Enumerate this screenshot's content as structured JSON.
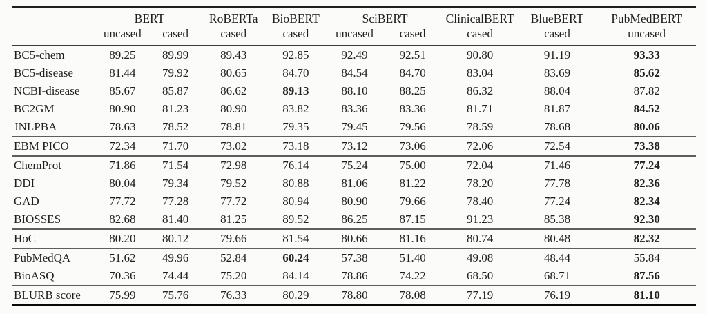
{
  "colors": {
    "background": "#fbfbf9",
    "text": "#1f1f1f",
    "rule_top": "#1e1e1e",
    "rule_bottom": "#0a0a0a",
    "rule_header": "#3c3c3c",
    "rule_group": "#5e5e5e"
  },
  "chart_data": {
    "type": "table",
    "header": {
      "groups": [
        {
          "label": "BERT",
          "span": 2
        },
        {
          "label": "RoBERTa",
          "span": 1
        },
        {
          "label": "BioBERT",
          "span": 1
        },
        {
          "label": "SciBERT",
          "span": 2
        },
        {
          "label": "ClinicalBERT",
          "span": 1
        },
        {
          "label": "BlueBERT",
          "span": 1
        },
        {
          "label": "PubMedBERT",
          "span": 1
        }
      ],
      "variants": [
        "uncased",
        "cased",
        "cased",
        "cased",
        "uncased",
        "cased",
        "cased",
        "cased",
        "uncased"
      ]
    },
    "row_groups": [
      {
        "rows": [
          {
            "task": "BC5-chem",
            "values": [
              "89.25",
              "89.99",
              "89.43",
              "92.85",
              "92.49",
              "92.51",
              "90.80",
              "91.19",
              "93.33"
            ],
            "best": 8
          },
          {
            "task": "BC5-disease",
            "values": [
              "81.44",
              "79.92",
              "80.65",
              "84.70",
              "84.54",
              "84.70",
              "83.04",
              "83.69",
              "85.62"
            ],
            "best": 8
          },
          {
            "task": "NCBI-disease",
            "values": [
              "85.67",
              "85.87",
              "86.62",
              "89.13",
              "88.10",
              "88.25",
              "86.32",
              "88.04",
              "87.82"
            ],
            "best": 3
          },
          {
            "task": "BC2GM",
            "values": [
              "80.90",
              "81.23",
              "80.90",
              "83.82",
              "83.36",
              "83.36",
              "81.71",
              "81.87",
              "84.52"
            ],
            "best": 8
          },
          {
            "task": "JNLPBA",
            "values": [
              "78.63",
              "78.52",
              "78.81",
              "79.35",
              "79.45",
              "79.56",
              "78.59",
              "78.68",
              "80.06"
            ],
            "best": 8
          }
        ]
      },
      {
        "rows": [
          {
            "task": "EBM PICO",
            "values": [
              "72.34",
              "71.70",
              "73.02",
              "73.18",
              "73.12",
              "73.06",
              "72.06",
              "72.54",
              "73.38"
            ],
            "best": 8
          }
        ]
      },
      {
        "rows": [
          {
            "task": "ChemProt",
            "values": [
              "71.86",
              "71.54",
              "72.98",
              "76.14",
              "75.24",
              "75.00",
              "72.04",
              "71.46",
              "77.24"
            ],
            "best": 8
          },
          {
            "task": "DDI",
            "values": [
              "80.04",
              "79.34",
              "79.52",
              "80.88",
              "81.06",
              "81.22",
              "78.20",
              "77.78",
              "82.36"
            ],
            "best": 8
          },
          {
            "task": "GAD",
            "values": [
              "77.72",
              "77.28",
              "77.72",
              "80.94",
              "80.90",
              "79.66",
              "78.40",
              "77.24",
              "82.34"
            ],
            "best": 8
          },
          {
            "task": "BIOSSES",
            "values": [
              "82.68",
              "81.40",
              "81.25",
              "89.52",
              "86.25",
              "87.15",
              "91.23",
              "85.38",
              "92.30"
            ],
            "best": 8
          }
        ]
      },
      {
        "rows": [
          {
            "task": "HoC",
            "values": [
              "80.20",
              "80.12",
              "79.66",
              "81.54",
              "80.66",
              "81.16",
              "80.74",
              "80.48",
              "82.32"
            ],
            "best": 8
          }
        ]
      },
      {
        "rows": [
          {
            "task": "PubMedQA",
            "values": [
              "51.62",
              "49.96",
              "52.84",
              "60.24",
              "57.38",
              "51.40",
              "49.08",
              "48.44",
              "55.84"
            ],
            "best": 3
          },
          {
            "task": "BioASQ",
            "values": [
              "70.36",
              "74.44",
              "75.20",
              "84.14",
              "78.86",
              "74.22",
              "68.50",
              "68.71",
              "87.56"
            ],
            "best": 8
          }
        ]
      },
      {
        "rows": [
          {
            "task": "BLURB score",
            "values": [
              "75.99",
              "75.76",
              "76.33",
              "80.29",
              "78.80",
              "78.08",
              "77.19",
              "76.19",
              "81.10"
            ],
            "best": 8
          }
        ]
      }
    ]
  }
}
